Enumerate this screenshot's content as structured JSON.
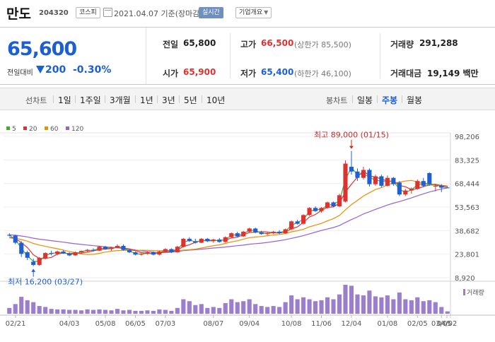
{
  "header": {
    "name": "만도",
    "code": "204320",
    "market_badge": "코스피",
    "date_text": "2021.04.07 기준(장마감)",
    "realtime_label": "실시간",
    "company_label": "기업개요"
  },
  "quote": {
    "price": "65,600",
    "change_label": "전일대비",
    "change_value": "200",
    "change_rate": "-0.30%",
    "prev_close": {
      "label": "전일",
      "value": "65,800"
    },
    "open": {
      "label": "시가",
      "value": "65,900"
    },
    "high": {
      "label": "고가",
      "value": "66,500",
      "sub": "(상한가 85,500)"
    },
    "low": {
      "label": "저가",
      "value": "65,400",
      "sub": "(하한가 46,100)"
    },
    "volume": {
      "label": "거래량",
      "value": "291,288"
    },
    "amount": {
      "label": "거래대금",
      "value": "19,149 백만"
    }
  },
  "periods": {
    "line_label": "선차트",
    "line_items": [
      "1일",
      "1주일",
      "3개월",
      "1년",
      "3년",
      "5년",
      "10년"
    ],
    "candle_label": "봉차트",
    "candle_items": [
      "일봉",
      "주봉",
      "월봉"
    ],
    "active": "주봉"
  },
  "colors": {
    "up": "#e03131",
    "down": "#1f5fd4",
    "ma5": "#3fae2a",
    "ma20": "#e03131",
    "ma60": "#f08c00",
    "ma120": "#9c5fd0",
    "volume": "#9b7fcc"
  },
  "chart_data": {
    "type": "candlestick",
    "legend": [
      "5",
      "20",
      "60",
      "120"
    ],
    "y_ticks": [
      98206,
      83325,
      68444,
      53563,
      38682,
      23801,
      8920
    ],
    "ylim": [
      8920,
      98206
    ],
    "x_ticks": [
      "02/21",
      "04/03",
      "05/08",
      "06/05",
      "07/03",
      "08/07",
      "09/04",
      "10/08",
      "11/06",
      "12/04",
      "01/08",
      "02/05",
      "03/05",
      "04/02"
    ],
    "annotations": {
      "high": "최고 89,000 (01/15)",
      "low": "최저 16,200 (03/27)"
    },
    "volume_label": "거래량",
    "candles": [
      [
        36000,
        37000,
        35000,
        35500
      ],
      [
        35500,
        36000,
        30000,
        31000
      ],
      [
        31000,
        32000,
        22000,
        24000
      ],
      [
        25000,
        26000,
        20000,
        21500
      ],
      [
        19000,
        21000,
        16200,
        17000
      ],
      [
        17000,
        22000,
        16500,
        21500
      ],
      [
        21000,
        25000,
        20500,
        24500
      ],
      [
        24500,
        26000,
        23000,
        24000
      ],
      [
        24000,
        26000,
        23000,
        25500
      ],
      [
        25500,
        26500,
        24000,
        24200
      ],
      [
        24200,
        25000,
        22500,
        23000
      ],
      [
        23000,
        25500,
        22800,
        25000
      ],
      [
        25000,
        26000,
        24000,
        25800
      ],
      [
        25800,
        27000,
        25000,
        26500
      ],
      [
        26500,
        27500,
        25500,
        26000
      ],
      [
        26000,
        29000,
        25800,
        28500
      ],
      [
        28500,
        29000,
        26500,
        27000
      ],
      [
        27000,
        28500,
        26000,
        28000
      ],
      [
        28000,
        30000,
        27500,
        29000
      ],
      [
        29000,
        30000,
        26000,
        26500
      ],
      [
        26500,
        27000,
        24500,
        25000
      ],
      [
        25000,
        25500,
        23000,
        23500
      ],
      [
        23500,
        24500,
        22800,
        24000
      ],
      [
        24000,
        25500,
        23500,
        25000
      ],
      [
        25000,
        25500,
        23000,
        23500
      ],
      [
        23500,
        26000,
        23000,
        25500
      ],
      [
        25500,
        27500,
        25000,
        27000
      ],
      [
        27000,
        27500,
        24500,
        25000
      ],
      [
        25000,
        29000,
        24800,
        28500
      ],
      [
        28500,
        34000,
        28000,
        33500
      ],
      [
        33500,
        34500,
        31500,
        32000
      ],
      [
        32000,
        33500,
        30500,
        31000
      ],
      [
        31000,
        34000,
        30800,
        33500
      ],
      [
        33500,
        34000,
        31500,
        32000
      ],
      [
        32000,
        33500,
        31000,
        33000
      ],
      [
        33000,
        34000,
        31000,
        31500
      ],
      [
        31500,
        35000,
        31000,
        34500
      ],
      [
        34500,
        37500,
        34000,
        37000
      ],
      [
        37000,
        38000,
        34500,
        35000
      ],
      [
        35000,
        38500,
        34800,
        38000
      ],
      [
        38000,
        40500,
        37500,
        40000
      ],
      [
        40000,
        40500,
        37000,
        37500
      ],
      [
        37500,
        38500,
        36000,
        36500
      ],
      [
        36500,
        37500,
        35800,
        37000
      ],
      [
        37000,
        38500,
        36500,
        38000
      ],
      [
        38000,
        39000,
        36500,
        37000
      ],
      [
        37000,
        40000,
        36800,
        39500
      ],
      [
        39500,
        45000,
        39000,
        44500
      ],
      [
        44500,
        45500,
        42500,
        43000
      ],
      [
        43000,
        49000,
        42500,
        48500
      ],
      [
        48500,
        53500,
        48000,
        53000
      ],
      [
        53000,
        54000,
        50500,
        51000
      ],
      [
        51000,
        53500,
        50000,
        53000
      ],
      [
        53000,
        57000,
        52500,
        56500
      ],
      [
        56500,
        57000,
        53500,
        54000
      ],
      [
        54000,
        62000,
        53500,
        61000
      ],
      [
        57000,
        83000,
        56500,
        81000
      ],
      [
        79000,
        89000,
        74000,
        76000
      ],
      [
        76000,
        78000,
        70000,
        72000
      ],
      [
        72000,
        79000,
        71000,
        77000
      ],
      [
        77000,
        78000,
        66500,
        68000
      ],
      [
        68000,
        74000,
        67000,
        73000
      ],
      [
        73000,
        74000,
        66000,
        67000
      ],
      [
        67000,
        73500,
        66500,
        72000
      ],
      [
        72000,
        72500,
        67000,
        68000
      ],
      [
        69000,
        70000,
        60500,
        61500
      ],
      [
        61500,
        65000,
        60500,
        64000
      ],
      [
        64000,
        66000,
        62000,
        65000
      ],
      [
        65000,
        71000,
        64500,
        70000
      ],
      [
        70000,
        72000,
        66000,
        67000
      ],
      [
        75000,
        75500,
        67000,
        68000
      ],
      [
        66500,
        68000,
        63500,
        67000
      ],
      [
        67000,
        68000,
        63000,
        65800
      ],
      [
        65900,
        66500,
        65400,
        65600
      ]
    ],
    "volumes": [
      12,
      20,
      35,
      28,
      24,
      16,
      14,
      10,
      9,
      9,
      8,
      8,
      7,
      9,
      8,
      9,
      8,
      7,
      10,
      7,
      8,
      6,
      6,
      7,
      6,
      9,
      8,
      6,
      12,
      30,
      26,
      18,
      20,
      12,
      14,
      12,
      22,
      30,
      24,
      26,
      30,
      20,
      16,
      14,
      16,
      14,
      24,
      38,
      30,
      34,
      30,
      26,
      28,
      34,
      30,
      40,
      60,
      58,
      40,
      38,
      48,
      36,
      34,
      38,
      30,
      44,
      30,
      28,
      34,
      26,
      28,
      24,
      14,
      5
    ]
  }
}
